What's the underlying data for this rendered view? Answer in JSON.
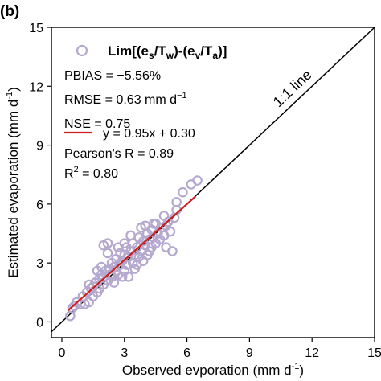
{
  "panel_label": "(b)",
  "chart_data": {
    "type": "scatter",
    "xlabel": "Observed evporation (mm d",
    "xlabel_sup": "-1",
    "xlabel_tail": ")",
    "ylabel": "Estimated evaporation (mm d",
    "ylabel_sup": "-1",
    "ylabel_tail": ")",
    "xlim": [
      -0.5,
      15
    ],
    "ylim": [
      -0.8,
      15
    ],
    "xticks": [
      0,
      3,
      6,
      9,
      12,
      15
    ],
    "yticks": [
      0,
      3,
      6,
      9,
      12,
      15
    ],
    "grid": false,
    "legend_position": "top-left",
    "legend_label": "Lim[(e_s/T_w)-(e_v/T_a)]",
    "one_to_one_label": "1:1 line",
    "colors": {
      "points": "#b5a8cf",
      "fit_line": "#cc1f1f",
      "one_to_one": "#000000"
    },
    "stats": {
      "pbias": "PBIAS = −5.56%",
      "rmse": "RMSE = 0.63 mm d",
      "rmse_sup": "−1",
      "nse": "NSE = 0.75",
      "fit": "y = 0.95x + 0.30",
      "pearson": "Pearson's R = 0.89",
      "r2_prefix": "R",
      "r2_sup": "2",
      "r2_value": " = 0.80"
    },
    "fit_line": {
      "slope": 0.95,
      "intercept": 0.3,
      "x_range": [
        0.3,
        6.4
      ]
    },
    "points": [
      [
        0.4,
        0.3
      ],
      [
        0.5,
        0.7
      ],
      [
        0.6,
        0.8
      ],
      [
        0.7,
        1.0
      ],
      [
        0.9,
        0.9
      ],
      [
        1.0,
        1.3
      ],
      [
        1.1,
        0.9
      ],
      [
        1.2,
        1.5
      ],
      [
        1.3,
        1.0
      ],
      [
        1.4,
        1.7
      ],
      [
        1.5,
        1.8
      ],
      [
        1.5,
        1.3
      ],
      [
        1.6,
        2.0
      ],
      [
        1.7,
        1.5
      ],
      [
        1.8,
        2.2
      ],
      [
        1.8,
        1.7
      ],
      [
        1.9,
        2.4
      ],
      [
        2.0,
        2.3
      ],
      [
        2.0,
        1.9
      ],
      [
        2.1,
        2.6
      ],
      [
        2.2,
        2.1
      ],
      [
        2.3,
        2.7
      ],
      [
        2.3,
        2.4
      ],
      [
        2.4,
        3.0
      ],
      [
        2.2,
        3.5
      ],
      [
        2.0,
        3.9
      ],
      [
        2.2,
        4.0
      ],
      [
        2.5,
        2.0
      ],
      [
        2.5,
        2.8
      ],
      [
        2.6,
        3.2
      ],
      [
        2.7,
        2.4
      ],
      [
        2.8,
        2.9
      ],
      [
        2.8,
        3.5
      ],
      [
        2.9,
        3.1
      ],
      [
        3.0,
        2.6
      ],
      [
        3.0,
        3.4
      ],
      [
        3.1,
        2.9
      ],
      [
        3.1,
        3.8
      ],
      [
        3.2,
        3.3
      ],
      [
        3.2,
        2.3
      ],
      [
        3.3,
        3.6
      ],
      [
        3.4,
        3.0
      ],
      [
        3.4,
        4.0
      ],
      [
        3.5,
        3.4
      ],
      [
        3.5,
        2.7
      ],
      [
        3.6,
        3.8
      ],
      [
        3.7,
        3.3
      ],
      [
        3.7,
        4.3
      ],
      [
        3.8,
        3.6
      ],
      [
        3.8,
        4.8
      ],
      [
        3.9,
        4.1
      ],
      [
        3.9,
        3.1
      ],
      [
        4.0,
        3.9
      ],
      [
        4.1,
        4.5
      ],
      [
        4.1,
        3.4
      ],
      [
        4.2,
        4.2
      ],
      [
        4.3,
        3.8
      ],
      [
        4.3,
        4.7
      ],
      [
        4.4,
        4.3
      ],
      [
        4.5,
        4.0
      ],
      [
        4.5,
        5.0
      ],
      [
        4.6,
        4.5
      ],
      [
        4.7,
        4.2
      ],
      [
        4.8,
        4.8
      ],
      [
        4.9,
        4.4
      ],
      [
        5.0,
        4.9
      ],
      [
        5.0,
        3.8
      ],
      [
        5.1,
        5.1
      ],
      [
        5.2,
        4.6
      ],
      [
        5.3,
        3.6
      ],
      [
        5.4,
        5.3
      ],
      [
        5.5,
        6.1
      ],
      [
        5.5,
        5.7
      ],
      [
        5.8,
        6.6
      ],
      [
        6.2,
        7.0
      ],
      [
        6.5,
        7.2
      ],
      [
        2.7,
        3.8
      ],
      [
        3.3,
        4.4
      ],
      [
        1.9,
        2.8
      ],
      [
        2.4,
        2.3
      ],
      [
        3.6,
        2.9
      ],
      [
        4.4,
        5.0
      ],
      [
        4.0,
        4.9
      ],
      [
        2.9,
        2.3
      ],
      [
        1.7,
        2.6
      ],
      [
        3.0,
        4.0
      ],
      [
        4.2,
        3.6
      ],
      [
        4.9,
        5.4
      ],
      [
        1.3,
        1.9
      ],
      [
        2.6,
        2.6
      ]
    ]
  }
}
